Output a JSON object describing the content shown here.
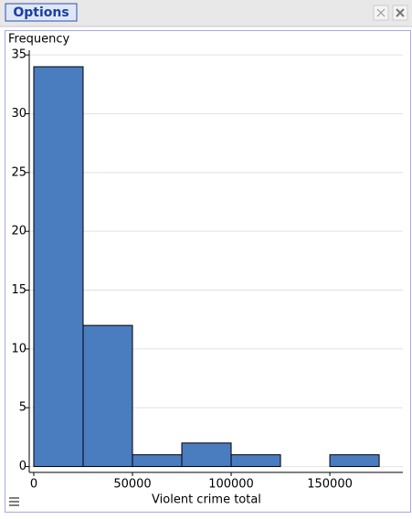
{
  "header": {
    "button": "Options"
  },
  "chart_data": {
    "type": "histogram",
    "xlabel": "Violent crime total",
    "ylabel": "Frequency",
    "bins": [
      0,
      25000,
      50000,
      75000,
      100000,
      125000,
      150000,
      175000
    ],
    "counts": [
      34,
      12,
      1,
      2,
      1,
      0,
      1
    ],
    "color": "#4a7cc0",
    "xlim": [
      -2300,
      187000
    ],
    "ylim": [
      -0.5,
      35.4
    ],
    "xticks": [
      0,
      50000,
      100000,
      150000
    ],
    "yticks": [
      0,
      5,
      10,
      15,
      20,
      25,
      30,
      35
    ],
    "grid": true
  }
}
